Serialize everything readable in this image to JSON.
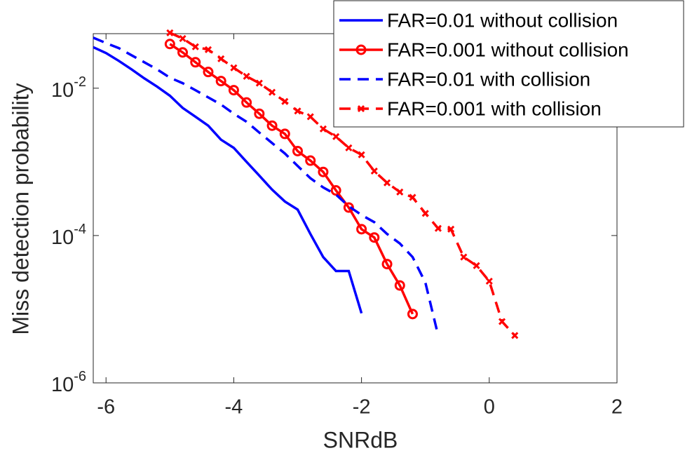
{
  "chart_data": {
    "type": "line",
    "x_label": "SNRdB",
    "y_label": "Miss detection probability",
    "xlim": [
      -6.2,
      2
    ],
    "xticks": [
      -6,
      -4,
      -2,
      0,
      2
    ],
    "ylim": [
      1e-06,
      0.055
    ],
    "log_y": true,
    "yticks": [
      {
        "value": 1e-06,
        "label": "10^-6"
      },
      {
        "value": 0.0001,
        "label": "10^-4"
      },
      {
        "value": 0.01,
        "label": "10^-2"
      }
    ],
    "legend": "northeast",
    "series": [
      {
        "name": "FAR=0.01 without collision",
        "color": "#0000ff",
        "dash": false,
        "marker": null,
        "x": [
          -6.2,
          -6,
          -5.8,
          -5.6,
          -5.4,
          -5.2,
          -5,
          -4.8,
          -4.6,
          -4.4,
          -4.2,
          -4,
          -3.8,
          -3.6,
          -3.4,
          -3.2,
          -3,
          -2.8,
          -2.6,
          -2.4,
          -2.2,
          -2
        ],
        "values": [
          0.036,
          0.03,
          0.0235,
          0.018,
          0.0136,
          0.0105,
          0.0079,
          0.0054,
          0.0041,
          0.0031,
          0.002,
          0.00155,
          0.001,
          0.00065,
          0.00042,
          0.00029,
          0.000225,
          0.000105,
          5.1e-05,
          3.3e-05,
          3.3e-05,
          8.8e-06
        ]
      },
      {
        "name": "FAR=0.001 without collision",
        "color": "#ff0000",
        "dash": false,
        "marker": "o",
        "x": [
          -5,
          -4.8,
          -4.6,
          -4.4,
          -4.2,
          -4,
          -3.8,
          -3.6,
          -3.4,
          -3.2,
          -3,
          -2.8,
          -2.6,
          -2.4,
          -2.2,
          -2,
          -1.8,
          -1.6,
          -1.4,
          -1.2
        ],
        "values": [
          0.0398,
          0.0306,
          0.0225,
          0.0166,
          0.0125,
          0.0094,
          0.0064,
          0.0045,
          0.0031,
          0.0024,
          0.0014,
          0.00104,
          0.00073,
          0.00041,
          0.00024,
          0.000122,
          9.4e-05,
          4.1e-05,
          2.1e-05,
          8.6e-06
        ]
      },
      {
        "name": "FAR=0.01 with collision",
        "color": "#0000ff",
        "dash": true,
        "marker": null,
        "x": [
          -6.2,
          -6,
          -5.8,
          -5.6,
          -5.4,
          -5.2,
          -5,
          -4.8,
          -4.6,
          -4.4,
          -4.2,
          -4,
          -3.8,
          -3.6,
          -3.4,
          -3.2,
          -3,
          -2.8,
          -2.6,
          -2.4,
          -2.2,
          -2,
          -1.8,
          -1.6,
          -1.4,
          -1.2,
          -1,
          -0.8
        ],
        "values": [
          0.0485,
          0.041,
          0.035,
          0.028,
          0.0225,
          0.018,
          0.0139,
          0.0117,
          0.0094,
          0.0075,
          0.006,
          0.0045,
          0.0035,
          0.0025,
          0.0018,
          0.0013,
          0.00088,
          0.0006,
          0.00045,
          0.00036,
          0.00025,
          0.00019,
          0.000152,
          0.000105,
          7.8e-05,
          5.1e-05,
          2.3e-05,
          4.4e-06
        ]
      },
      {
        "name": "FAR=0.001 with collision",
        "color": "#ff0000",
        "dash": true,
        "marker": "x",
        "x": [
          -5,
          -4.8,
          -4.6,
          -4.4,
          -4.2,
          -4,
          -3.8,
          -3.6,
          -3.4,
          -3.2,
          -3,
          -2.8,
          -2.6,
          -2.4,
          -2.2,
          -2,
          -1.8,
          -1.6,
          -1.4,
          -1.2,
          -1,
          -0.8,
          -0.6,
          -0.4,
          -0.2,
          0,
          0.2,
          0.4
        ],
        "values": [
          0.0565,
          0.0473,
          0.0365,
          0.0334,
          0.0251,
          0.0189,
          0.0145,
          0.0117,
          0.0088,
          0.0066,
          0.0049,
          0.0041,
          0.0028,
          0.0022,
          0.00155,
          0.00125,
          0.00075,
          0.00052,
          0.00039,
          0.00033,
          0.0002,
          0.000125,
          0.000122,
          5.1e-05,
          3.9e-05,
          2.4e-05,
          6.8e-06,
          4.4e-06
        ]
      }
    ]
  }
}
